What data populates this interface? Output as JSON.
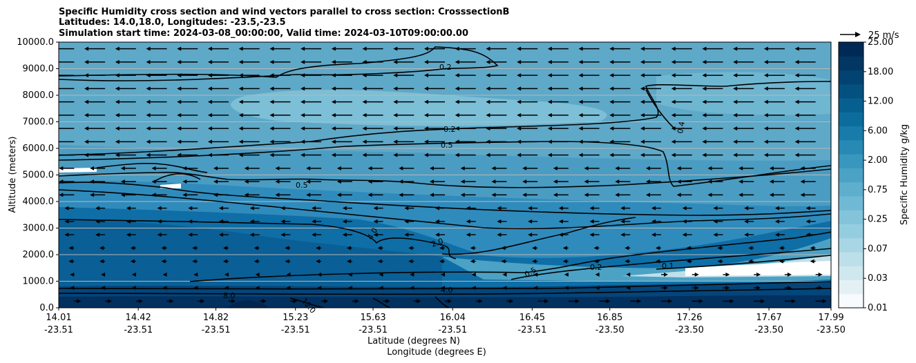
{
  "chart_data": {
    "type": "heatmap",
    "title_lines": [
      "Specific Humidity cross section and wind vectors parallel to cross section: CrosssectionB",
      "Latitudes: 14.0,18.0, Longitudes: -23.5,-23.5",
      "Simulation start time: 2024-03-08_00:00:00, Valid time: 2024-03-10T09:00:00.00"
    ],
    "ylabel": "Altitude (meters)",
    "xlabel_lat": "Latitude (degrees N)",
    "xlabel_lon": "Longitude (degrees E)",
    "ylim": [
      0,
      10000
    ],
    "y_ticks": [
      "0.0",
      "1000.0",
      "2000.0",
      "3000.0",
      "4000.0",
      "5000.0",
      "6000.0",
      "7000.0",
      "8000.0",
      "9000.0",
      "10000.0"
    ],
    "x_ticks": [
      {
        "lat": "14.01",
        "lon": "-23.51"
      },
      {
        "lat": "14.42",
        "lon": "-23.51"
      },
      {
        "lat": "14.82",
        "lon": "-23.51"
      },
      {
        "lat": "15.23",
        "lon": "-23.51"
      },
      {
        "lat": "15.63",
        "lon": "-23.51"
      },
      {
        "lat": "16.04",
        "lon": "-23.51"
      },
      {
        "lat": "16.45",
        "lon": "-23.51"
      },
      {
        "lat": "16.85",
        "lon": "-23.50"
      },
      {
        "lat": "17.26",
        "lon": "-23.50"
      },
      {
        "lat": "17.67",
        "lon": "-23.50"
      },
      {
        "lat": "17.99",
        "lon": "-23.50"
      }
    ],
    "horizontal_gridlines": true,
    "colorbar": {
      "label": "Specific Humidity g/kg",
      "ticks": [
        "0.01",
        "0.03",
        "0.07",
        "0.25",
        "0.75",
        "2.00",
        "6.00",
        "12.00",
        "18.00",
        "25.00"
      ],
      "levels": [
        0.01,
        0.02,
        0.03,
        0.05,
        0.07,
        0.1,
        0.25,
        0.5,
        0.75,
        1,
        2,
        4,
        6,
        8,
        12,
        14,
        18,
        20,
        25
      ],
      "colors": [
        "#f7fbfd",
        "#e3f1f5",
        "#cfe7ef",
        "#bddfe9",
        "#a9d6e4",
        "#95cde0",
        "#83c4da",
        "#70b9d4",
        "#5eaecd",
        "#4ba2c5",
        "#3996bd",
        "#2789b4",
        "#187ba9",
        "#0c6d9d",
        "#075f8f",
        "#045180",
        "#034371",
        "#023663",
        "#012955"
      ]
    },
    "quiver_key": {
      "label": "25 m/s",
      "magnitude_ms": 25
    },
    "contours": [
      {
        "label": "0.2",
        "position": "upper troposphere near 9000 m"
      },
      {
        "label": "0.2",
        "position": "near 6600 m mid-section"
      },
      {
        "label": "0.5",
        "position": "near 6100 m mid-section"
      },
      {
        "label": "0.4",
        "position": "near 6500 m around 17.26N"
      },
      {
        "label": "0.5",
        "position": "near 4500 m around 15.3N"
      },
      {
        "label": "4.0",
        "position": "near 2700 m around 15.7N"
      },
      {
        "label": "2.0",
        "position": "near 2400 m around 15.9N"
      },
      {
        "label": "0.5",
        "position": "near 1400 m around 16.5N"
      },
      {
        "label": "0.2",
        "position": "near 1500 m around 16.9N"
      },
      {
        "label": "0.1",
        "position": "near 1600 m around 17.3N"
      },
      {
        "label": "4.0",
        "position": "near 700 m around 16.0N"
      },
      {
        "label": "8.0",
        "position": "near 450 m"
      },
      {
        "label": "12.0",
        "position": "near 200 m"
      }
    ],
    "winds": "easterly (northeast trade) flow aloft, weak near-surface flow, westerly near surface in north"
  }
}
